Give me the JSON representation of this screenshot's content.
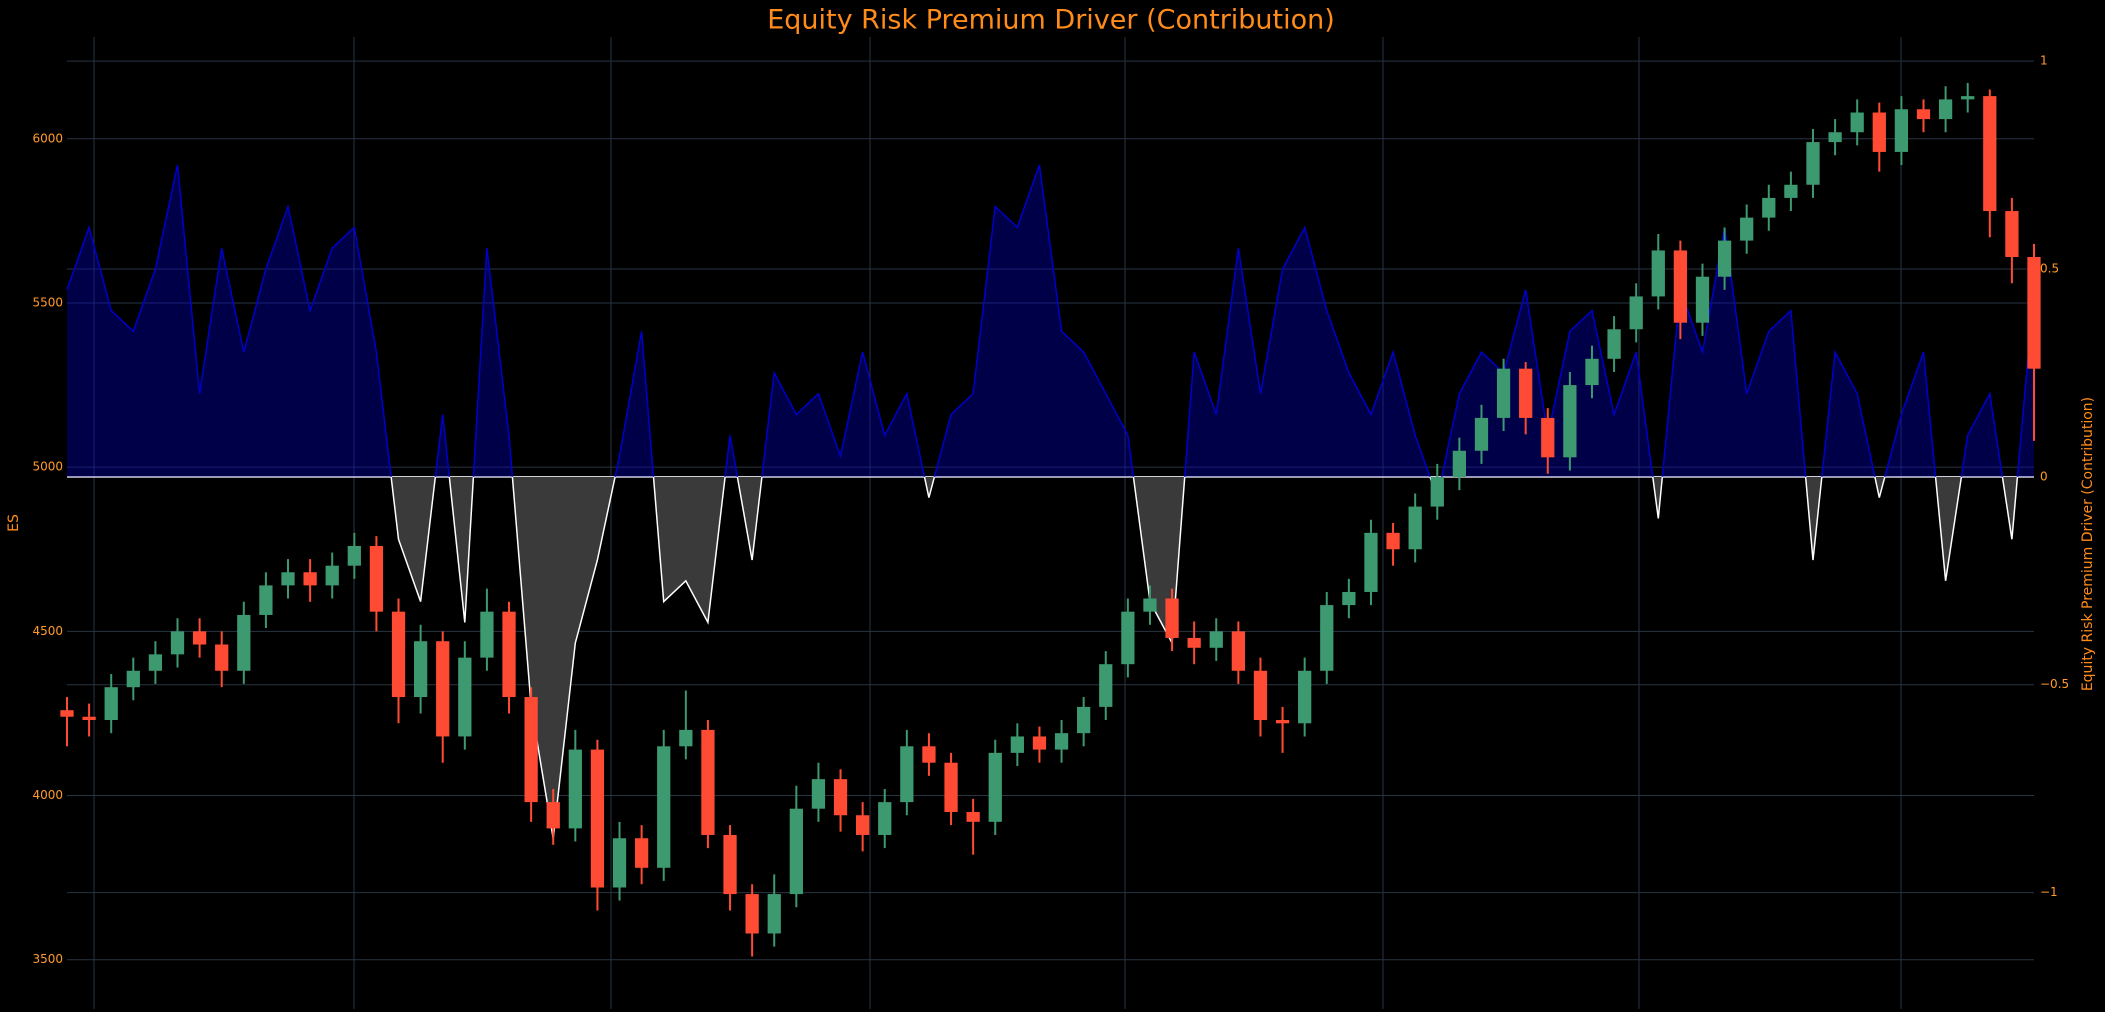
{
  "chart_data": {
    "type": "candlestick",
    "title": "Equity Risk Premium Driver (Contribution)",
    "ylabel": "ES",
    "y2label": "Equity Risk Premium Driver (Contribution)",
    "ylim": [
      3350,
      6310
    ],
    "yticks": [
      3500,
      4000,
      4500,
      5000,
      5500,
      6000
    ],
    "y2lim": [
      -1.28,
      1.058
    ],
    "y2ticks": [
      {
        "value": -1,
        "label": "−1"
      },
      {
        "value": -0.5,
        "label": "−0.5"
      },
      0,
      0.5,
      1
    ],
    "grid": true,
    "increasing_color": "#3d9970",
    "decreasing_color": "#ff4b33",
    "open": [
      4260,
      4240,
      4230,
      4330,
      4380,
      4430,
      4500,
      4460,
      4380,
      4550,
      4640,
      4680,
      4640,
      4700,
      4760,
      4560,
      4300,
      4470,
      4180,
      4420,
      4560,
      4300,
      3980,
      3900,
      4140,
      3720,
      3870,
      3780,
      4150,
      4200,
      3880,
      3700,
      3580,
      3700,
      3960,
      4050,
      3940,
      3880,
      3980,
      4150,
      4100,
      3950,
      3920,
      4130,
      4180,
      4140,
      4190,
      4270,
      4400,
      4560,
      4600,
      4480,
      4450,
      4500,
      4380,
      4230,
      4220,
      4380,
      4580,
      4620,
      4800,
      4750,
      4880,
      4970,
      5050,
      5150,
      5300,
      5150,
      5030,
      5250,
      5330,
      5420,
      5520,
      5660,
      5440,
      5580,
      5690,
      5760,
      5820,
      5860,
      5990,
      6020,
      6080,
      5960,
      6090,
      6060,
      6120,
      6130,
      5780,
      5640
    ],
    "high": [
      4300,
      4280,
      4370,
      4420,
      4470,
      4540,
      4540,
      4500,
      4590,
      4680,
      4720,
      4720,
      4740,
      4800,
      4790,
      4600,
      4520,
      4500,
      4470,
      4630,
      4590,
      4330,
      4020,
      4200,
      4170,
      3920,
      3910,
      4200,
      4320,
      4230,
      3910,
      3730,
      3760,
      4030,
      4100,
      4080,
      3980,
      4020,
      4200,
      4190,
      4130,
      3990,
      4170,
      4220,
      4210,
      4230,
      4300,
      4440,
      4600,
      4640,
      4630,
      4530,
      4540,
      4530,
      4420,
      4270,
      4420,
      4620,
      4660,
      4840,
      4830,
      4920,
      5010,
      5090,
      5190,
      5330,
      5320,
      5180,
      5290,
      5370,
      5460,
      5560,
      5710,
      5690,
      5620,
      5730,
      5800,
      5860,
      5900,
      6030,
      6060,
      6120,
      6110,
      6130,
      6120,
      6160,
      6170,
      6150,
      5820,
      5680
    ],
    "low": [
      4150,
      4180,
      4190,
      4290,
      4340,
      4390,
      4420,
      4330,
      4340,
      4510,
      4600,
      4590,
      4600,
      4660,
      4500,
      4220,
      4250,
      4100,
      4140,
      4380,
      4250,
      3920,
      3850,
      3860,
      3650,
      3680,
      3730,
      3740,
      4110,
      3840,
      3650,
      3510,
      3540,
      3660,
      3920,
      3890,
      3830,
      3840,
      3940,
      4060,
      3910,
      3820,
      3880,
      4090,
      4100,
      4100,
      4150,
      4230,
      4360,
      4520,
      4440,
      4400,
      4410,
      4340,
      4180,
      4130,
      4180,
      4340,
      4540,
      4580,
      4700,
      4710,
      4840,
      4930,
      5010,
      5110,
      5100,
      4980,
      4990,
      5210,
      5290,
      5380,
      5480,
      5390,
      5400,
      5540,
      5650,
      5720,
      5780,
      5820,
      5950,
      5980,
      5900,
      5920,
      6020,
      6020,
      6080,
      5700,
      5560,
      5080
    ],
    "close": [
      4240,
      4230,
      4330,
      4380,
      4430,
      4500,
      4460,
      4380,
      4550,
      4640,
      4680,
      4640,
      4700,
      4760,
      4560,
      4300,
      4470,
      4180,
      4420,
      4560,
      4300,
      3980,
      3900,
      4140,
      3720,
      3870,
      3780,
      4150,
      4200,
      3880,
      3700,
      3580,
      3700,
      3960,
      4050,
      3940,
      3880,
      3980,
      4150,
      4100,
      3950,
      3920,
      4130,
      4180,
      4140,
      4190,
      4270,
      4400,
      4560,
      4600,
      4480,
      4450,
      4500,
      4380,
      4230,
      4220,
      4380,
      4580,
      4620,
      4800,
      4750,
      4880,
      4970,
      5050,
      5150,
      5300,
      5150,
      5030,
      5250,
      5330,
      5420,
      5520,
      5660,
      5440,
      5580,
      5690,
      5760,
      5820,
      5860,
      5990,
      6020,
      6080,
      5960,
      6090,
      6060,
      6120,
      6130,
      5780,
      5640,
      5300
    ],
    "contribution": {
      "axis": "y2",
      "positive_color": "#0000cd",
      "negative_color": "#ffffff",
      "values": [
        0.45,
        0.6,
        0.4,
        0.35,
        0.5,
        0.75,
        0.2,
        0.55,
        0.3,
        0.5,
        0.65,
        0.4,
        0.55,
        0.6,
        0.3,
        -0.15,
        -0.3,
        0.15,
        -0.35,
        0.55,
        0.1,
        -0.55,
        -0.87,
        -0.4,
        -0.2,
        0.05,
        0.35,
        -0.3,
        -0.25,
        -0.35,
        0.1,
        -0.2,
        0.25,
        0.15,
        0.2,
        0.05,
        0.3,
        0.1,
        0.2,
        -0.05,
        0.15,
        0.2,
        0.65,
        0.6,
        0.75,
        0.35,
        0.3,
        0.2,
        0.1,
        -0.3,
        -0.4,
        0.3,
        0.15,
        0.55,
        0.2,
        0.5,
        0.6,
        0.4,
        0.25,
        0.15,
        0.3,
        0.1,
        -0.05,
        0.2,
        0.3,
        0.25,
        0.45,
        0.1,
        0.35,
        0.4,
        0.15,
        0.3,
        -0.1,
        0.45,
        0.3,
        0.6,
        0.2,
        0.35,
        0.4,
        -0.2,
        0.3,
        0.2,
        -0.05,
        0.15,
        0.3,
        -0.25,
        0.1,
        0.2,
        -0.15,
        0.45
      ]
    }
  }
}
